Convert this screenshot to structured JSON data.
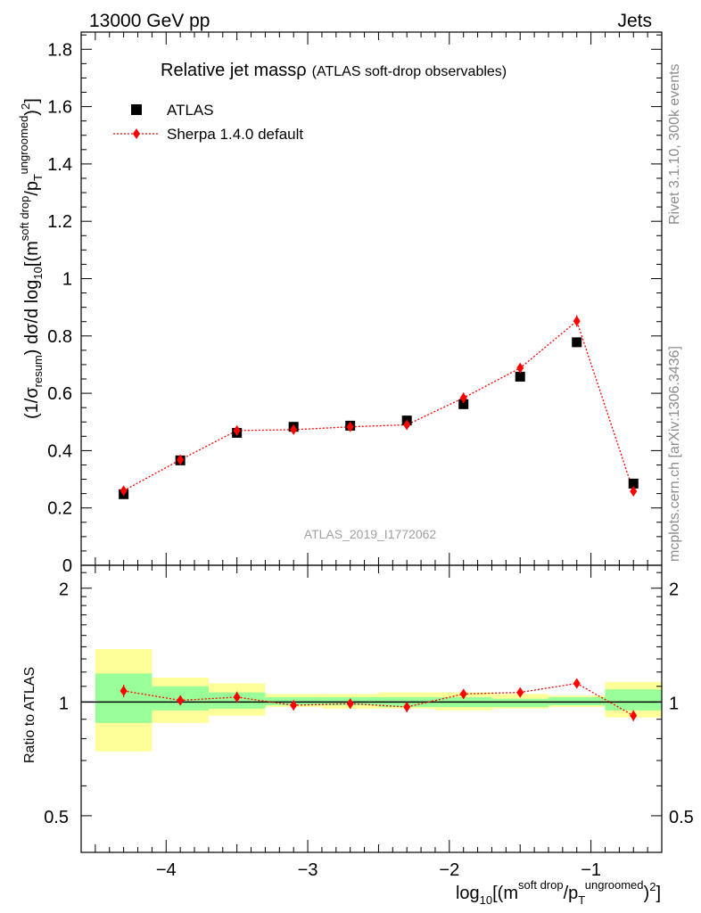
{
  "header": {
    "left": "13000 GeV pp",
    "right": "Jets"
  },
  "side": {
    "rivet": "Rivet 3.1.10,  300k events",
    "mcplots": "mcplots.cern.ch [arXiv:1306.3436]"
  },
  "title": {
    "main": "Relative jet mass",
    "rho": "ρ",
    "sub": "(ATLAS soft-drop observables)"
  },
  "watermark": "ATLAS_2019_I1772062",
  "legend": {
    "data": "ATLAS",
    "mc": "Sherpa 1.4.0 default"
  },
  "axes": {
    "ylabel_main": {
      "pre": "(1/σ",
      "sub1": "resum",
      "mid": ") dσ/d log",
      "sub2": "10",
      "mid2": "[(m",
      "sup1": "soft drop",
      "mid3": "/p",
      "sub3": "T",
      "sup2": "ungroomed",
      "post": ")",
      "sup3": "2",
      "end": "]"
    },
    "ylabel_ratio": "Ratio to ATLAS",
    "xlabel": {
      "pre": "log",
      "sub1": "10",
      "mid": "[(m",
      "sup1": "soft drop",
      "mid2": "/p",
      "sub2": "T",
      "sup2": "ungroomed",
      "post": ")",
      "sup3": "2",
      "end": "]"
    }
  },
  "colors": {
    "data": "#000000",
    "mc": "#ff0000",
    "band_inner": "#99ff99",
    "band_outer": "#ffff99"
  },
  "chart_data": {
    "type": "scatter",
    "xlim": [
      -4.6,
      -0.5
    ],
    "ylim": [
      0,
      1.86
    ],
    "ratio_ylim": [
      0.4,
      2.3
    ],
    "ratio_scale": "log",
    "xticks": [
      -4,
      -3,
      -2,
      -1
    ],
    "xtick_labels": [
      "−4",
      "−3",
      "−2",
      "−1"
    ],
    "yticks": [
      0,
      0.2,
      0.4,
      0.6,
      0.8,
      1.0,
      1.2,
      1.4,
      1.6,
      1.8
    ],
    "ytick_labels": [
      "0",
      "0.2",
      "0.4",
      "0.6",
      "0.8",
      "1",
      "1.2",
      "1.4",
      "1.6",
      "1.8"
    ],
    "ratio_yticks": [
      0.5,
      1,
      2
    ],
    "ratio_ytick_labels": [
      "0.5",
      "1",
      "2"
    ],
    "bin_edges": [
      -4.5,
      -4.1,
      -3.7,
      -3.3,
      -2.9,
      -2.5,
      -2.1,
      -1.7,
      -1.3,
      -0.9,
      -0.5
    ],
    "x": [
      -4.3,
      -3.9,
      -3.5,
      -3.1,
      -2.7,
      -2.3,
      -1.9,
      -1.5,
      -1.1,
      -0.7
    ],
    "series": [
      {
        "name": "ATLAS",
        "values": [
          0.248,
          0.366,
          0.462,
          0.483,
          0.487,
          0.505,
          0.562,
          0.658,
          0.778,
          0.285
        ]
      },
      {
        "name": "Sherpa 1.4.0 default",
        "values": [
          0.26,
          0.368,
          0.47,
          0.473,
          0.483,
          0.49,
          0.584,
          0.688,
          0.852,
          0.258
        ],
        "errors": [
          0.008,
          0.01,
          0.016,
          0.014,
          0.014,
          0.016,
          0.018,
          0.016,
          0.02,
          0.01
        ]
      }
    ],
    "ratio": {
      "values": [
        1.07,
        1.01,
        1.03,
        0.98,
        0.99,
        0.97,
        1.05,
        1.06,
        1.12,
        0.92
      ],
      "errors": [
        0.04,
        0.03,
        0.035,
        0.03,
        0.03,
        0.03,
        0.03,
        0.025,
        0.03,
        0.03
      ],
      "band_inner": [
        [
          0.88,
          1.19
        ],
        [
          0.95,
          1.1
        ],
        [
          0.96,
          1.06
        ],
        [
          0.98,
          1.03
        ],
        [
          0.98,
          1.03
        ],
        [
          0.97,
          1.03
        ],
        [
          0.97,
          1.03
        ],
        [
          0.97,
          1.02
        ],
        [
          0.98,
          1.03
        ],
        [
          0.95,
          1.08
        ]
      ],
      "band_outer": [
        [
          0.74,
          1.38
        ],
        [
          0.88,
          1.16
        ],
        [
          0.92,
          1.12
        ],
        [
          0.97,
          1.05
        ],
        [
          0.96,
          1.05
        ],
        [
          0.96,
          1.06
        ],
        [
          0.95,
          1.06
        ],
        [
          0.96,
          1.05
        ],
        [
          0.97,
          1.04
        ],
        [
          0.91,
          1.13
        ]
      ]
    }
  }
}
